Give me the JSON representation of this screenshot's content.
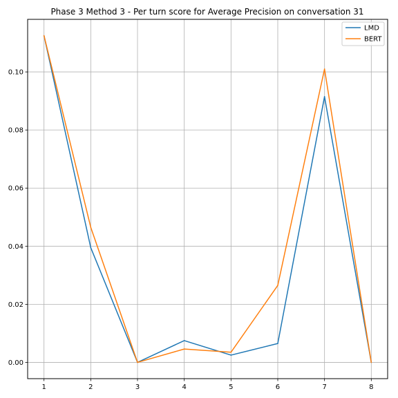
{
  "chart_data": {
    "type": "line",
    "title": "Phase 3 Method 3 - Per turn score for Average Precision on conversation 31",
    "xlabel": "",
    "ylabel": "",
    "x": [
      1,
      2,
      3,
      4,
      5,
      6,
      7,
      8
    ],
    "xlim": [
      0.65,
      8.35
    ],
    "ylim": [
      -0.0056,
      0.1181
    ],
    "xticks": [
      "1",
      "2",
      "3",
      "4",
      "5",
      "6",
      "7",
      "8"
    ],
    "yticks": [
      "0.00",
      "0.02",
      "0.04",
      "0.06",
      "0.08",
      "0.10"
    ],
    "ytick_values": [
      0,
      0.02,
      0.04,
      0.06,
      0.08,
      0.1
    ],
    "grid": true,
    "legend_position": "top-right",
    "series": [
      {
        "name": "LMD",
        "color": "#1f77b4",
        "values": [
          0.1125,
          0.0395,
          0.0,
          0.0075,
          0.0025,
          0.0065,
          0.0915,
          0.0
        ]
      },
      {
        "name": "BERT",
        "color": "#ff7f0e",
        "values": [
          0.1125,
          0.0465,
          0.0,
          0.0046,
          0.0035,
          0.0265,
          0.101,
          0.0
        ]
      }
    ]
  }
}
